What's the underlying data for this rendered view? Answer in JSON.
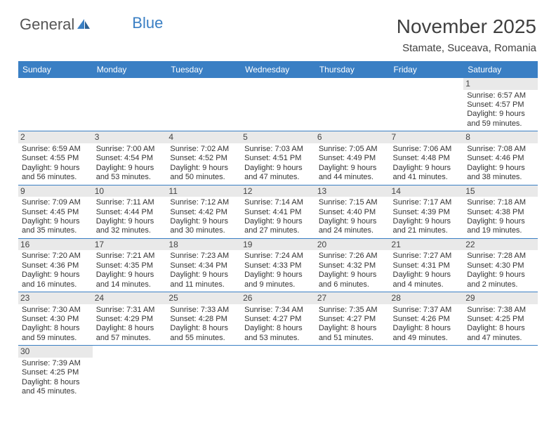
{
  "logo": {
    "word1": "General",
    "word2": "Blue"
  },
  "title": "November 2025",
  "location": "Stamate, Suceava, Romania",
  "colors": {
    "header_bg": "#3a7fc4",
    "header_text": "#ffffff",
    "daynum_bg": "#e9e9e9",
    "border": "#3a7fc4",
    "title_text": "#404040"
  },
  "day_headers": [
    "Sunday",
    "Monday",
    "Tuesday",
    "Wednesday",
    "Thursday",
    "Friday",
    "Saturday"
  ],
  "weeks": [
    [
      null,
      null,
      null,
      null,
      null,
      null,
      {
        "n": "1",
        "sr": "6:57 AM",
        "ss": "4:57 PM",
        "dl": "9 hours and 59 minutes."
      }
    ],
    [
      {
        "n": "2",
        "sr": "6:59 AM",
        "ss": "4:55 PM",
        "dl": "9 hours and 56 minutes."
      },
      {
        "n": "3",
        "sr": "7:00 AM",
        "ss": "4:54 PM",
        "dl": "9 hours and 53 minutes."
      },
      {
        "n": "4",
        "sr": "7:02 AM",
        "ss": "4:52 PM",
        "dl": "9 hours and 50 minutes."
      },
      {
        "n": "5",
        "sr": "7:03 AM",
        "ss": "4:51 PM",
        "dl": "9 hours and 47 minutes."
      },
      {
        "n": "6",
        "sr": "7:05 AM",
        "ss": "4:49 PM",
        "dl": "9 hours and 44 minutes."
      },
      {
        "n": "7",
        "sr": "7:06 AM",
        "ss": "4:48 PM",
        "dl": "9 hours and 41 minutes."
      },
      {
        "n": "8",
        "sr": "7:08 AM",
        "ss": "4:46 PM",
        "dl": "9 hours and 38 minutes."
      }
    ],
    [
      {
        "n": "9",
        "sr": "7:09 AM",
        "ss": "4:45 PM",
        "dl": "9 hours and 35 minutes."
      },
      {
        "n": "10",
        "sr": "7:11 AM",
        "ss": "4:44 PM",
        "dl": "9 hours and 32 minutes."
      },
      {
        "n": "11",
        "sr": "7:12 AM",
        "ss": "4:42 PM",
        "dl": "9 hours and 30 minutes."
      },
      {
        "n": "12",
        "sr": "7:14 AM",
        "ss": "4:41 PM",
        "dl": "9 hours and 27 minutes."
      },
      {
        "n": "13",
        "sr": "7:15 AM",
        "ss": "4:40 PM",
        "dl": "9 hours and 24 minutes."
      },
      {
        "n": "14",
        "sr": "7:17 AM",
        "ss": "4:39 PM",
        "dl": "9 hours and 21 minutes."
      },
      {
        "n": "15",
        "sr": "7:18 AM",
        "ss": "4:38 PM",
        "dl": "9 hours and 19 minutes."
      }
    ],
    [
      {
        "n": "16",
        "sr": "7:20 AM",
        "ss": "4:36 PM",
        "dl": "9 hours and 16 minutes."
      },
      {
        "n": "17",
        "sr": "7:21 AM",
        "ss": "4:35 PM",
        "dl": "9 hours and 14 minutes."
      },
      {
        "n": "18",
        "sr": "7:23 AM",
        "ss": "4:34 PM",
        "dl": "9 hours and 11 minutes."
      },
      {
        "n": "19",
        "sr": "7:24 AM",
        "ss": "4:33 PM",
        "dl": "9 hours and 9 minutes."
      },
      {
        "n": "20",
        "sr": "7:26 AM",
        "ss": "4:32 PM",
        "dl": "9 hours and 6 minutes."
      },
      {
        "n": "21",
        "sr": "7:27 AM",
        "ss": "4:31 PM",
        "dl": "9 hours and 4 minutes."
      },
      {
        "n": "22",
        "sr": "7:28 AM",
        "ss": "4:30 PM",
        "dl": "9 hours and 2 minutes."
      }
    ],
    [
      {
        "n": "23",
        "sr": "7:30 AM",
        "ss": "4:30 PM",
        "dl": "8 hours and 59 minutes."
      },
      {
        "n": "24",
        "sr": "7:31 AM",
        "ss": "4:29 PM",
        "dl": "8 hours and 57 minutes."
      },
      {
        "n": "25",
        "sr": "7:33 AM",
        "ss": "4:28 PM",
        "dl": "8 hours and 55 minutes."
      },
      {
        "n": "26",
        "sr": "7:34 AM",
        "ss": "4:27 PM",
        "dl": "8 hours and 53 minutes."
      },
      {
        "n": "27",
        "sr": "7:35 AM",
        "ss": "4:27 PM",
        "dl": "8 hours and 51 minutes."
      },
      {
        "n": "28",
        "sr": "7:37 AM",
        "ss": "4:26 PM",
        "dl": "8 hours and 49 minutes."
      },
      {
        "n": "29",
        "sr": "7:38 AM",
        "ss": "4:25 PM",
        "dl": "8 hours and 47 minutes."
      }
    ],
    [
      {
        "n": "30",
        "sr": "7:39 AM",
        "ss": "4:25 PM",
        "dl": "8 hours and 45 minutes."
      },
      null,
      null,
      null,
      null,
      null,
      null
    ]
  ],
  "labels": {
    "sunrise": "Sunrise:",
    "sunset": "Sunset:",
    "daylight": "Daylight:"
  }
}
